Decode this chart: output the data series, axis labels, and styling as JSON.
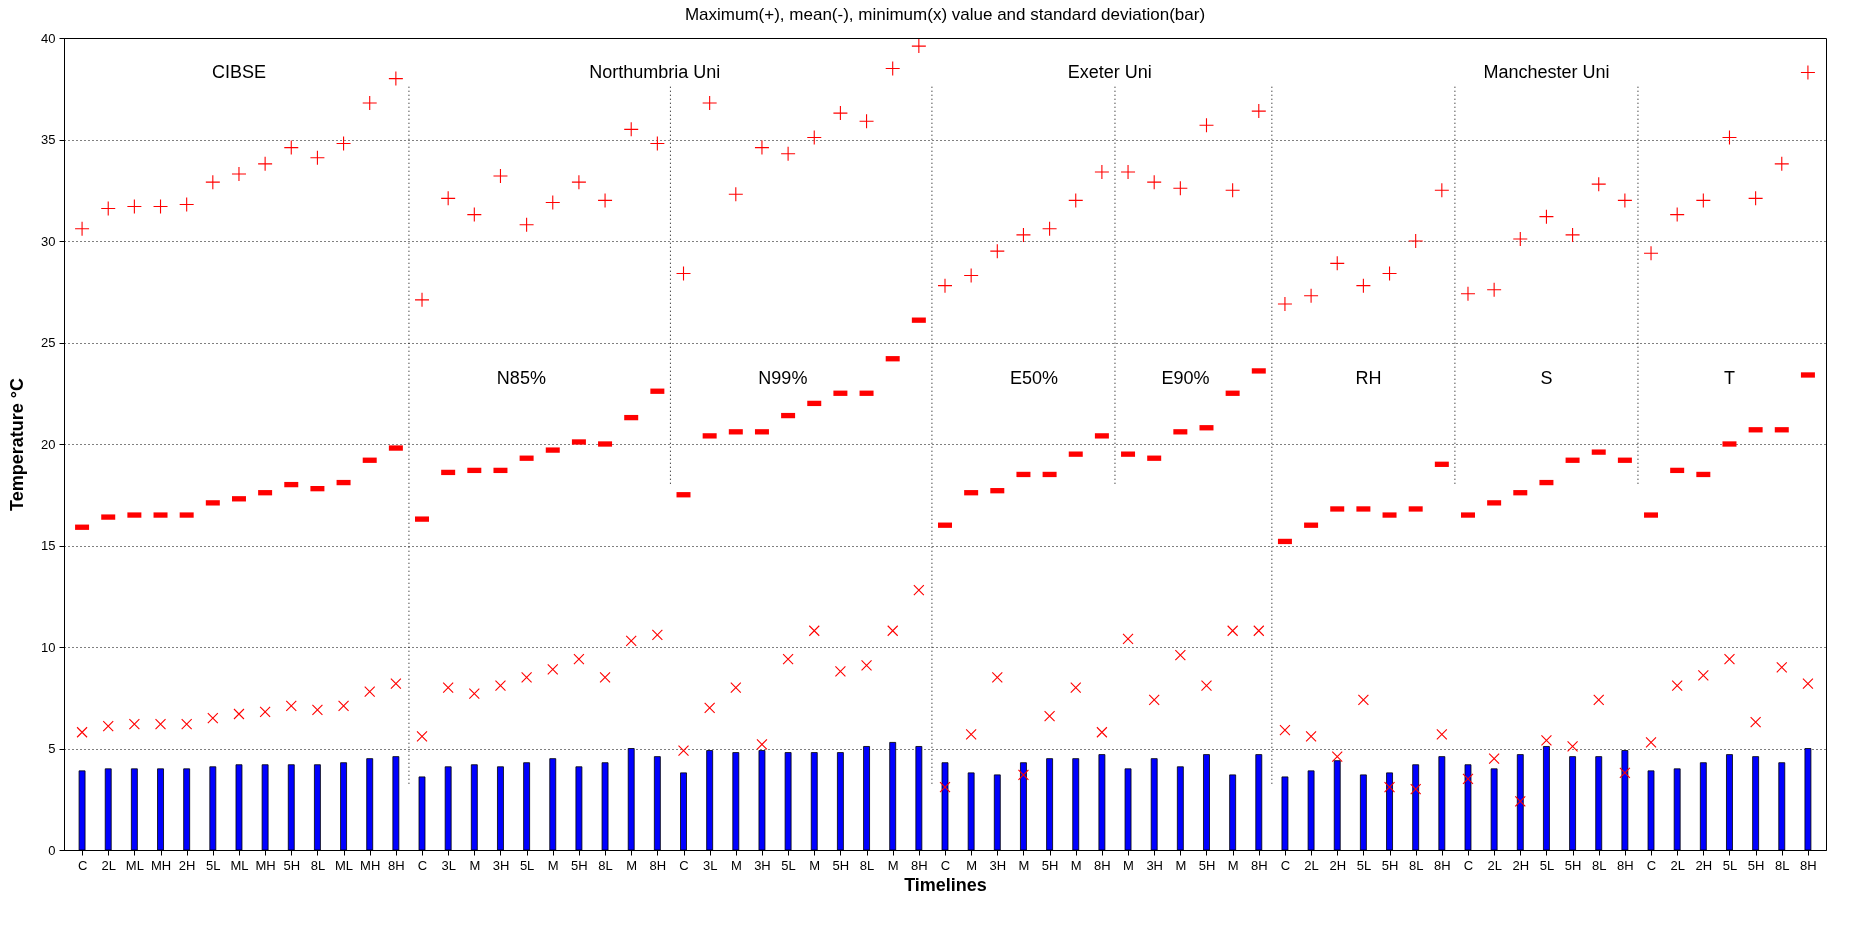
{
  "chart_data": {
    "type": "scatter",
    "title": "Maximum(+), mean(-), minimum(x) value and standard deviation(bar)",
    "xlabel": "Timelines",
    "ylabel": "Temperature °C",
    "categories": [
      "C",
      "2L",
      "ML",
      "MH",
      "2H",
      "5L",
      "ML",
      "MH",
      "5H",
      "8L",
      "ML",
      "MH",
      "8H",
      "C",
      "3L",
      "M",
      "3H",
      "5L",
      "M",
      "5H",
      "8L",
      "M",
      "8H",
      "C",
      "3L",
      "M",
      "3H",
      "5L",
      "M",
      "5H",
      "8L",
      "M",
      "8H",
      "C",
      "M",
      "3H",
      "M",
      "5H",
      "M",
      "8H",
      "M",
      "3H",
      "M",
      "5H",
      "M",
      "8H",
      "C",
      "2L",
      "2H",
      "5L",
      "5H",
      "8L",
      "8H",
      "C",
      "2L",
      "2H",
      "5L",
      "5H",
      "8L",
      "8H",
      "C",
      "2L",
      "2H",
      "5L",
      "5H",
      "8L",
      "8H"
    ],
    "ylim": [
      0,
      40
    ],
    "yticks": [
      0,
      5,
      10,
      15,
      20,
      25,
      30,
      35,
      40
    ],
    "grid": "y",
    "legend": false,
    "series": [
      {
        "type": "bar",
        "color": "#0000ff",
        "values": [
          3.9,
          4.0,
          4.0,
          4.0,
          4.0,
          4.1,
          4.2,
          4.2,
          4.2,
          4.2,
          4.3,
          4.5,
          4.6,
          3.6,
          4.1,
          4.2,
          4.1,
          4.3,
          4.5,
          4.1,
          4.3,
          5.0,
          4.6,
          3.8,
          4.9,
          4.8,
          4.9,
          4.8,
          4.8,
          4.8,
          5.1,
          5.3,
          5.1,
          4.3,
          3.8,
          3.7,
          4.3,
          4.5,
          4.5,
          4.7,
          4.0,
          4.5,
          4.1,
          4.7,
          3.7,
          4.7,
          3.6,
          3.9,
          4.4,
          3.7,
          3.8,
          4.2,
          4.6,
          4.2,
          4.0,
          4.7,
          5.1,
          4.6,
          4.6,
          4.9,
          3.9,
          4.0,
          4.3,
          4.7,
          4.6,
          4.3,
          5.0
        ]
      },
      {
        "marker": "cross",
        "color": "#ff0000",
        "values": [
          30.6,
          31.6,
          31.7,
          31.7,
          31.8,
          32.9,
          33.3,
          33.8,
          34.6,
          34.1,
          34.8,
          36.8,
          38.0,
          27.1,
          32.1,
          31.3,
          33.2,
          30.8,
          31.9,
          32.9,
          32.0,
          35.5,
          34.8,
          28.4,
          36.8,
          32.3,
          34.6,
          34.3,
          35.1,
          36.3,
          35.9,
          38.5,
          39.6,
          27.8,
          28.3,
          29.5,
          30.3,
          30.6,
          32.0,
          33.4,
          33.4,
          32.9,
          32.6,
          35.7,
          32.5,
          36.4,
          26.9,
          27.3,
          28.9,
          27.8,
          28.4,
          30.0,
          32.5,
          27.4,
          27.6,
          30.1,
          31.2,
          30.3,
          32.8,
          32.0,
          29.4,
          31.3,
          32.0,
          35.1,
          32.1,
          33.8,
          38.3
        ]
      },
      {
        "marker": "square",
        "color": "#ff0000",
        "values": [
          15.9,
          16.4,
          16.5,
          16.5,
          16.5,
          17.1,
          17.3,
          17.6,
          18.0,
          17.8,
          18.1,
          19.2,
          19.8,
          16.3,
          18.6,
          18.7,
          18.7,
          19.3,
          19.7,
          20.1,
          20.0,
          21.3,
          22.6,
          17.5,
          20.4,
          20.6,
          20.6,
          21.4,
          22.0,
          22.5,
          22.5,
          24.2,
          26.1,
          16.0,
          17.6,
          17.7,
          18.5,
          18.5,
          19.5,
          20.4,
          19.5,
          19.3,
          20.6,
          20.8,
          22.5,
          23.6,
          15.2,
          16.0,
          16.8,
          16.8,
          16.5,
          16.8,
          19.0,
          16.5,
          17.1,
          17.6,
          18.1,
          19.2,
          19.6,
          19.2,
          16.5,
          18.7,
          18.5,
          20.0,
          20.7,
          20.7,
          23.4
        ]
      },
      {
        "marker": "x",
        "color": "#ff0000",
        "values": [
          5.8,
          6.1,
          6.2,
          6.2,
          6.2,
          6.5,
          6.7,
          6.8,
          7.1,
          6.9,
          7.1,
          7.8,
          8.2,
          5.6,
          8.0,
          7.7,
          8.1,
          8.5,
          8.9,
          9.4,
          8.5,
          10.3,
          10.6,
          4.9,
          7.0,
          8.0,
          5.2,
          9.4,
          10.8,
          8.8,
          9.1,
          10.8,
          12.8,
          3.1,
          5.7,
          8.5,
          3.7,
          6.6,
          8.0,
          5.8,
          10.4,
          7.4,
          9.6,
          8.1,
          10.8,
          10.8,
          5.9,
          5.6,
          4.6,
          7.4,
          3.1,
          3.0,
          5.7,
          3.5,
          4.5,
          2.4,
          5.4,
          5.1,
          7.4,
          3.8,
          5.3,
          8.1,
          8.6,
          9.4,
          6.3,
          9.0,
          8.2
        ]
      }
    ],
    "annotations": [
      "CIBSE",
      "Northumbria Uni",
      "Exeter Uni",
      "Manchester Uni",
      "N85%",
      "N99%",
      "E50%",
      "E90%",
      "RH",
      "S",
      "T"
    ]
  }
}
